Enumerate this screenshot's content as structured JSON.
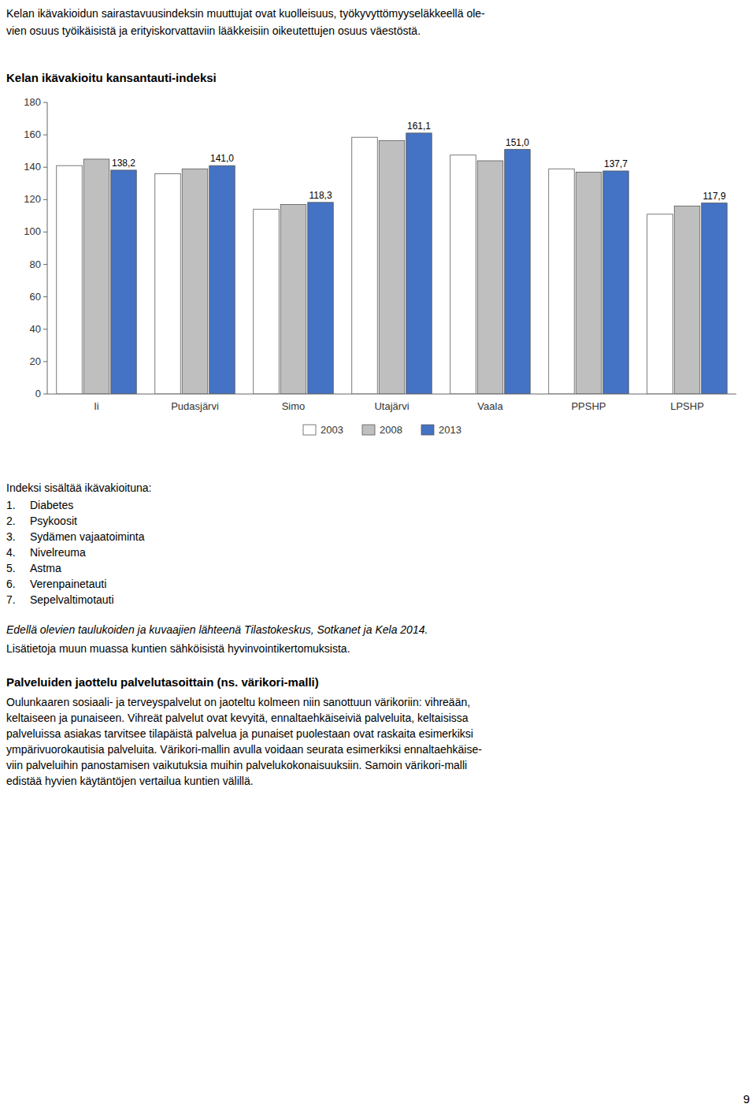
{
  "header_lines": [
    "Kelan ikävakioidun sairastavuusindeksin muuttujat ovat kuolleisuus, työkyvyttömyyseläkkeellä ole-",
    "vien osuus työikäisistä ja erityiskorvattaviin lääkkeisiin oikeutettujen osuus väestöstä."
  ],
  "chart_data": {
    "type": "bar",
    "title": "Kelan ikävakioitu kansantauti-indeksi",
    "categories": [
      "Ii",
      "Pudasjärvi",
      "Simo",
      "Utajärvi",
      "Vaala",
      "PPSHP",
      "LPSHP"
    ],
    "series": [
      {
        "name": "2003",
        "color": "#ffffff",
        "values": [
          141.0,
          136.0,
          114.0,
          158.5,
          147.5,
          139.0,
          111.0
        ]
      },
      {
        "name": "2008",
        "color": "#bfbfbf",
        "values": [
          145.0,
          139.0,
          117.0,
          156.5,
          144.0,
          137.0,
          116.0
        ]
      },
      {
        "name": "2013",
        "color": "#4472c4",
        "values": [
          138.2,
          141.0,
          118.3,
          161.1,
          151.0,
          137.7,
          117.9
        ],
        "data_labels": true,
        "value_labels": [
          "138,2",
          "141,0",
          "118,3",
          "161,1",
          "151,0",
          "137,7",
          "117,9"
        ]
      }
    ],
    "ylim": [
      0,
      180
    ],
    "yticks": [
      0,
      20,
      40,
      60,
      80,
      100,
      120,
      140,
      160,
      180
    ],
    "grid": false,
    "legend": "bottom"
  },
  "footer_intro": "Indeksi sisältää ikävakioituna:",
  "footer_nums": [
    "1.",
    "2.",
    "3.",
    "4.",
    "5.",
    "6.",
    "7."
  ],
  "footer_names": [
    "Diabetes",
    "Psykoosit",
    "Sydämen vajaatoiminta",
    "Nivelreuma",
    "Astma",
    "Verenpainetauti",
    "Sepelvaltimotauti"
  ],
  "source_text": "Edellä olevien taulukoiden ja kuvaajien lähteenä Tilastokeskus, Sotkanet ja Kela 2014.",
  "lisatietoja": "Lisätietoja muun muassa kuntien sähköisistä hyvinvointikertomuksista.",
  "section_title": "Palveluiden jaottelu palvelutasoittain (ns. värikori-malli)",
  "section_lines": [
    "Oulunkaaren sosiaali- ja terveyspalvelut on jaoteltu kolmeen niin sanottuun värikoriin: vihreään,",
    "keltaiseen ja punaiseen. Vihreät palvelut ovat kevyitä, ennaltaehkäiseiviä palveluita, keltaisissa",
    "palveluissa asiakas tarvitsee tilapäistä palvelua ja punaiset puolestaan ovat raskaita esimerkiksi",
    "ympärivuorokautisia palveluita. Värikori-mallin avulla voidaan seurata esimerkiksi ennaltaehkäise-",
    "viin palveluihin panostamisen vaikutuksia muihin palvelukokonaisuuksiin. Samoin värikori-malli",
    "edistää hyvien käytäntöjen vertailua kuntien välillä."
  ],
  "page_number": "9"
}
